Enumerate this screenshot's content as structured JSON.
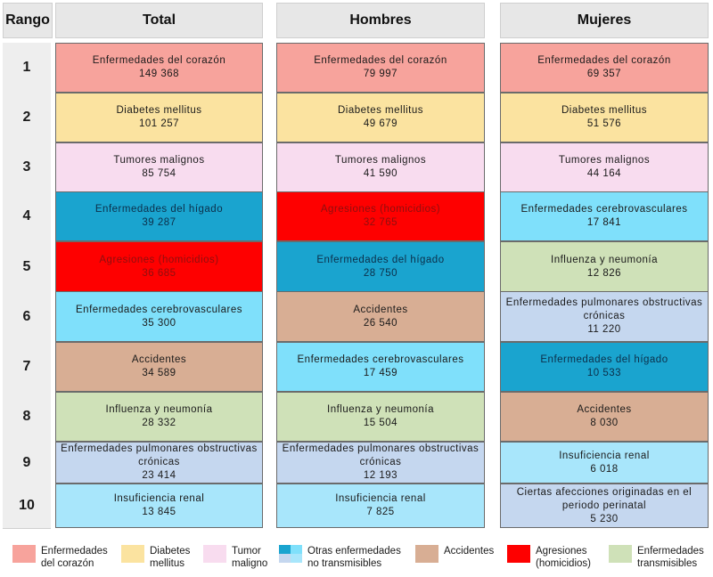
{
  "headers": {
    "rank": "Rango",
    "total": "Total",
    "men": "Hombres",
    "women": "Mujeres"
  },
  "colors": {
    "heart": "#f7a39c",
    "diabetes": "#fbe3a0",
    "tumor": "#f8dcef",
    "liver": "#1aa4cf",
    "cerebro": "#7fe0fb",
    "pulmonary": "#c5d7ef",
    "renal": "#a8e6fb",
    "perinatal": "#c5d7ef",
    "homicide": "#fe0000",
    "accidents": "#d8ae94",
    "influenza": "#cfe1b8"
  },
  "rows": [
    {
      "rank": "1",
      "total": {
        "name": "Enfermedades del corazón",
        "value": "149 368",
        "color": "heart"
      },
      "men": {
        "name": "Enfermedades del corazón",
        "value": "79 997",
        "color": "heart"
      },
      "women": {
        "name": "Enfermedades del corazón",
        "value": "69 357",
        "color": "heart"
      }
    },
    {
      "rank": "2",
      "total": {
        "name": "Diabetes mellitus",
        "value": "101 257",
        "color": "diabetes"
      },
      "men": {
        "name": "Diabetes mellitus",
        "value": "49 679",
        "color": "diabetes"
      },
      "women": {
        "name": "Diabetes mellitus",
        "value": "51 576",
        "color": "diabetes"
      }
    },
    {
      "rank": "3",
      "total": {
        "name": "Tumores malignos",
        "value": "85 754",
        "color": "tumor"
      },
      "men": {
        "name": "Tumores malignos",
        "value": "41 590",
        "color": "tumor"
      },
      "women": {
        "name": "Tumores malignos",
        "value": "44 164",
        "color": "tumor"
      }
    },
    {
      "rank": "4",
      "total": {
        "name": "Enfermedades del hígado",
        "value": "39 287",
        "color": "liver"
      },
      "men": {
        "name": "Agresiones (homicidios)",
        "value": "32 765",
        "color": "homicide"
      },
      "women": {
        "name": "Enfermedades cerebrovasculares",
        "value": "17 841",
        "color": "cerebro"
      }
    },
    {
      "rank": "5",
      "total": {
        "name": "Agresiones (homicidios)",
        "value": "36 685",
        "color": "homicide"
      },
      "men": {
        "name": "Enfermedades del hígado",
        "value": "28 750",
        "color": "liver"
      },
      "women": {
        "name": "Influenza y neumonía",
        "value": "12 826",
        "color": "influenza"
      }
    },
    {
      "rank": "6",
      "total": {
        "name": "Enfermedades cerebrovasculares",
        "value": "35 300",
        "color": "cerebro"
      },
      "men": {
        "name": "Accidentes",
        "value": "26 540",
        "color": "accidents"
      },
      "women": {
        "name": "Enfermedades pulmonares obstructivas crónicas",
        "value": "11 220",
        "color": "pulmonary"
      }
    },
    {
      "rank": "7",
      "total": {
        "name": "Accidentes",
        "value": "34 589",
        "color": "accidents"
      },
      "men": {
        "name": "Enfermedades cerebrovasculares",
        "value": "17 459",
        "color": "cerebro"
      },
      "women": {
        "name": "Enfermedades del hígado",
        "value": "10 533",
        "color": "liver"
      }
    },
    {
      "rank": "8",
      "total": {
        "name": "Influenza y neumonía",
        "value": "28 332",
        "color": "influenza"
      },
      "men": {
        "name": "Influenza y neumonía",
        "value": "15 504",
        "color": "influenza"
      },
      "women": {
        "name": "Accidentes",
        "value": "8 030",
        "color": "accidents"
      }
    },
    {
      "rank": "9",
      "total": {
        "name": "Enfermedades pulmonares obstructivas crónicas",
        "value": "23 414",
        "color": "pulmonary"
      },
      "men": {
        "name": "Enfermedades pulmonares obstructivas crónicas",
        "value": "12 193",
        "color": "pulmonary"
      },
      "women": {
        "name": "Insuficiencia renal",
        "value": "6 018",
        "color": "renal"
      }
    },
    {
      "rank": "10",
      "total": {
        "name": "Insuficiencia renal",
        "value": "13 845",
        "color": "renal"
      },
      "men": {
        "name": "Insuficiencia renal",
        "value": "7 825",
        "color": "renal"
      },
      "women": {
        "name": "Ciertas afecciones originadas en el periodo perinatal",
        "value": "5 230",
        "color": "perinatal"
      }
    }
  ],
  "legend": [
    {
      "line1": "Enfermedades",
      "line2": "del corazón",
      "color": "#f7a39c"
    },
    {
      "line1": "Diabetes",
      "line2": "mellitus",
      "color": "#fbe3a0"
    },
    {
      "line1": "Tumor",
      "line2": "maligno",
      "color": "#f8dcef"
    },
    {
      "line1": "Otras enfermedades",
      "line2": "no transmisibles",
      "colors": [
        "#1aa4cf",
        "#7fe0fb",
        "#c5d7ef",
        "#a8e6fb"
      ]
    },
    {
      "line1": "Accidentes",
      "line2": "",
      "color": "#d8ae94"
    },
    {
      "line1": "Agresiones",
      "line2": "(homicidios)",
      "color": "#fe0000"
    },
    {
      "line1": "Enfermedades",
      "line2": "transmisibles",
      "color": "#cfe1b8"
    }
  ]
}
